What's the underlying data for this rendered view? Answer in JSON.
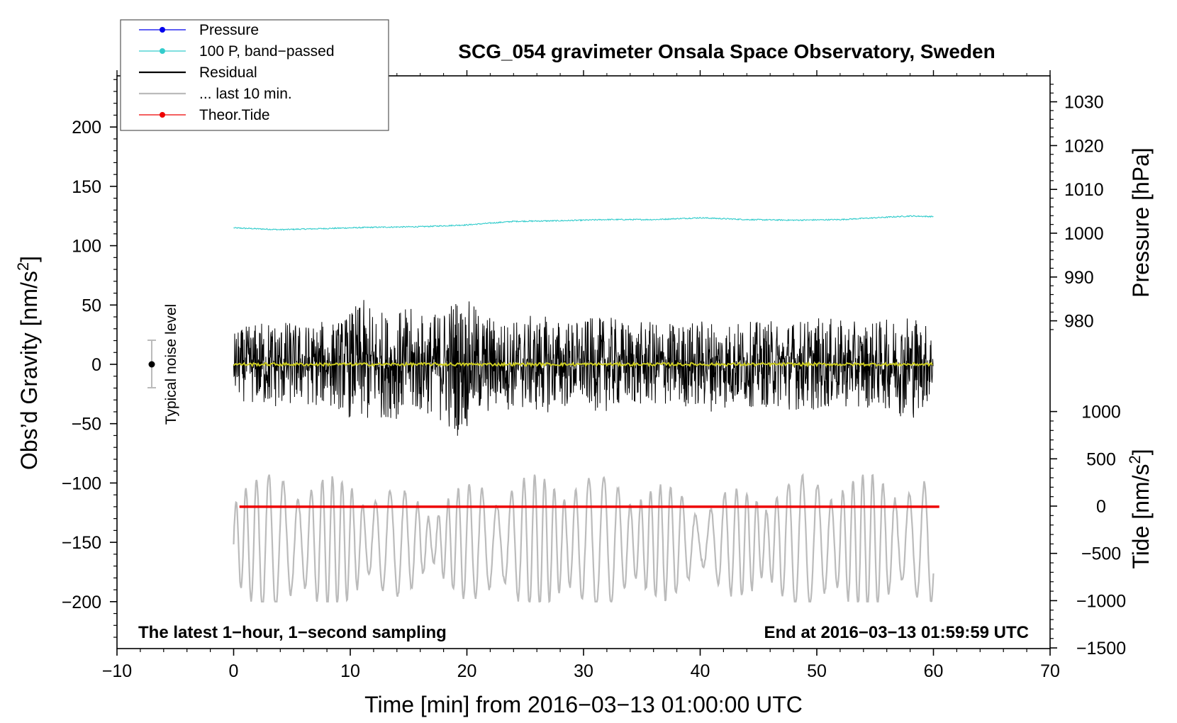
{
  "chart_data": {
    "type": "line",
    "title": "SCG_054 gravimeter Onsala Space Observatory, Sweden",
    "annotations": {
      "left": "The latest 1−hour, 1−second sampling",
      "right": "End at 2016−03−13 01:59:59 UTC",
      "noise": "Typical noise level"
    },
    "xlabel": "Time [min] from 2016−03−13 01:00:00 UTC",
    "xlim": [
      -10,
      70
    ],
    "xticks": [
      "−10",
      "0",
      "10",
      "20",
      "30",
      "40",
      "50",
      "60",
      "70"
    ],
    "ylabel": "Obs’d Gravity [nm/s",
    "ylabel_sup": "2",
    "ylabel_end": "]",
    "ylim": [
      -240,
      245
    ],
    "yticks": [
      "−200",
      "−150",
      "−100",
      "−50",
      "0",
      "50",
      "100",
      "150",
      "200"
    ],
    "pressure_axis": {
      "label": "Pressure [hPa]",
      "ticks": [
        "980",
        "990",
        "1000",
        "1010",
        "1020",
        "1030"
      ]
    },
    "tide_axis": {
      "label": "Tide [nm/s",
      "label_sup": "2",
      "label_end": "]",
      "ticks": [
        "−1500",
        "−1000",
        "−500",
        "0",
        "500",
        "1000"
      ]
    },
    "legend": {
      "placement": "top-left",
      "entries": [
        {
          "label": "Pressure",
          "color": "#0000ee",
          "marker": true
        },
        {
          "label": "100 P, band−passed",
          "color": "#33cccc",
          "marker": true
        },
        {
          "label": "Residual",
          "color": "#000000",
          "marker": false
        },
        {
          "label": "... last 10 min.",
          "color": "#bbbbbb",
          "marker": false
        },
        {
          "label": "Theor.Tide",
          "color": "#ee0000",
          "marker": true
        }
      ]
    },
    "series": [
      {
        "name": "100 P, band−passed",
        "color": "#33cccc",
        "x_range": [
          0,
          60
        ],
        "points": [
          [
            0,
            115
          ],
          [
            4,
            113.5
          ],
          [
            8,
            114.5
          ],
          [
            12,
            115.5
          ],
          [
            16,
            116
          ],
          [
            20,
            117.5
          ],
          [
            24,
            120.5
          ],
          [
            28,
            121
          ],
          [
            32,
            122
          ],
          [
            36,
            122
          ],
          [
            40,
            123.5
          ],
          [
            44,
            122
          ],
          [
            48,
            121.5
          ],
          [
            52,
            122
          ],
          [
            56,
            124
          ],
          [
            58,
            125
          ],
          [
            60,
            124.5
          ]
        ]
      },
      {
        "name": "Residual",
        "color": "#000000",
        "x_range": [
          0,
          60
        ],
        "approx_range": [
          -67,
          71
        ],
        "envelope": [
          [
            0,
            28
          ],
          [
            3,
            40
          ],
          [
            6,
            35
          ],
          [
            9,
            38
          ],
          [
            11,
            55
          ],
          [
            13,
            45
          ],
          [
            15,
            48
          ],
          [
            17,
            42
          ],
          [
            19,
            62
          ],
          [
            21,
            48
          ],
          [
            23,
            38
          ],
          [
            26,
            42
          ],
          [
            29,
            38
          ],
          [
            32,
            40
          ],
          [
            35,
            36
          ],
          [
            38,
            36
          ],
          [
            41,
            40
          ],
          [
            44,
            36
          ],
          [
            47,
            38
          ],
          [
            50,
            40
          ],
          [
            53,
            36
          ],
          [
            56,
            38
          ],
          [
            58,
            48
          ],
          [
            60,
            30
          ]
        ]
      },
      {
        "name": "Residual (smoothed)",
        "color": "#cccc22",
        "x_range": [
          0,
          60
        ],
        "approx_value": 0
      },
      {
        "name": "... last 10 min.",
        "color": "#bbbbbb",
        "x_range": [
          0,
          60
        ],
        "approx_range": [
          -200,
          -93
        ]
      },
      {
        "name": "Theor.Tide",
        "color": "#ee0000",
        "x_range": [
          0.5,
          60.5
        ],
        "approx_value": -120
      }
    ],
    "noise_level": {
      "x": -7,
      "center": 0,
      "half_range": 20
    }
  }
}
